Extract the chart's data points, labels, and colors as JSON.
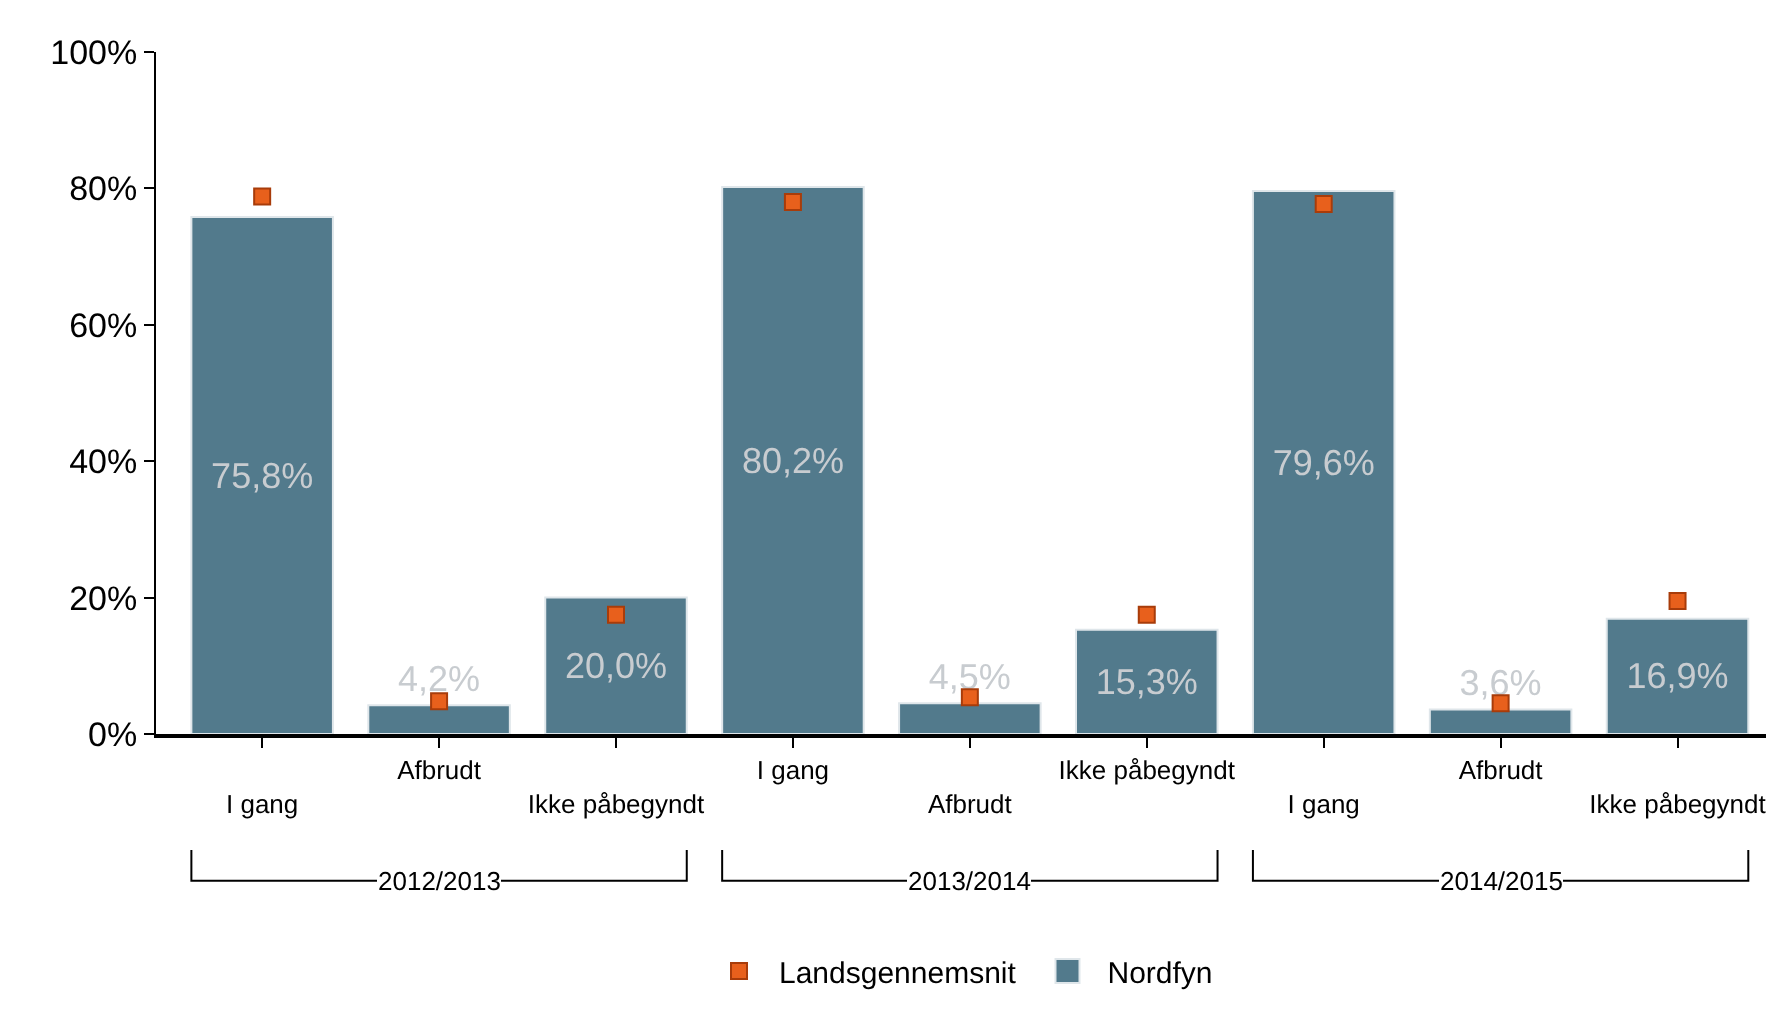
{
  "chart_data": {
    "type": "bar",
    "categories": [
      "I gang",
      "Afbrudt",
      "Ikke påbegyndt",
      "I gang",
      "Afbrudt",
      "Ikke påbegyndt",
      "I gang",
      "Afbrudt",
      "Ikke påbegyndt"
    ],
    "series": [
      {
        "name": "Landsgennemsnit",
        "type": "scatter",
        "color": "#e8601c",
        "values": [
          78.8,
          4.8,
          17.5,
          78.0,
          5.4,
          17.5,
          77.7,
          4.5,
          19.5
        ]
      },
      {
        "name": "Nordfyn",
        "color": "#527a8c",
        "values": [
          75.8,
          4.2,
          20.0,
          80.2,
          4.5,
          15.3,
          79.6,
          3.6,
          16.9
        ],
        "value_labels": [
          "75,8%",
          "4,2%",
          "20,0%",
          "80,2%",
          "4,5%",
          "15,3%",
          "79,6%",
          "3,6%",
          "16,9%"
        ]
      }
    ],
    "ylim": [
      0,
      100
    ],
    "yticks": [
      {
        "value": 0,
        "label": "0%"
      },
      {
        "value": 20,
        "label": "20%"
      },
      {
        "value": 40,
        "label": "40%"
      },
      {
        "value": 60,
        "label": "60%"
      },
      {
        "value": 80,
        "label": "80%"
      },
      {
        "value": 100,
        "label": "100%"
      }
    ],
    "grid": false,
    "legend": "bottom",
    "annotations": [
      "2012/2013",
      "2013/2014",
      "2014/2015"
    ]
  }
}
